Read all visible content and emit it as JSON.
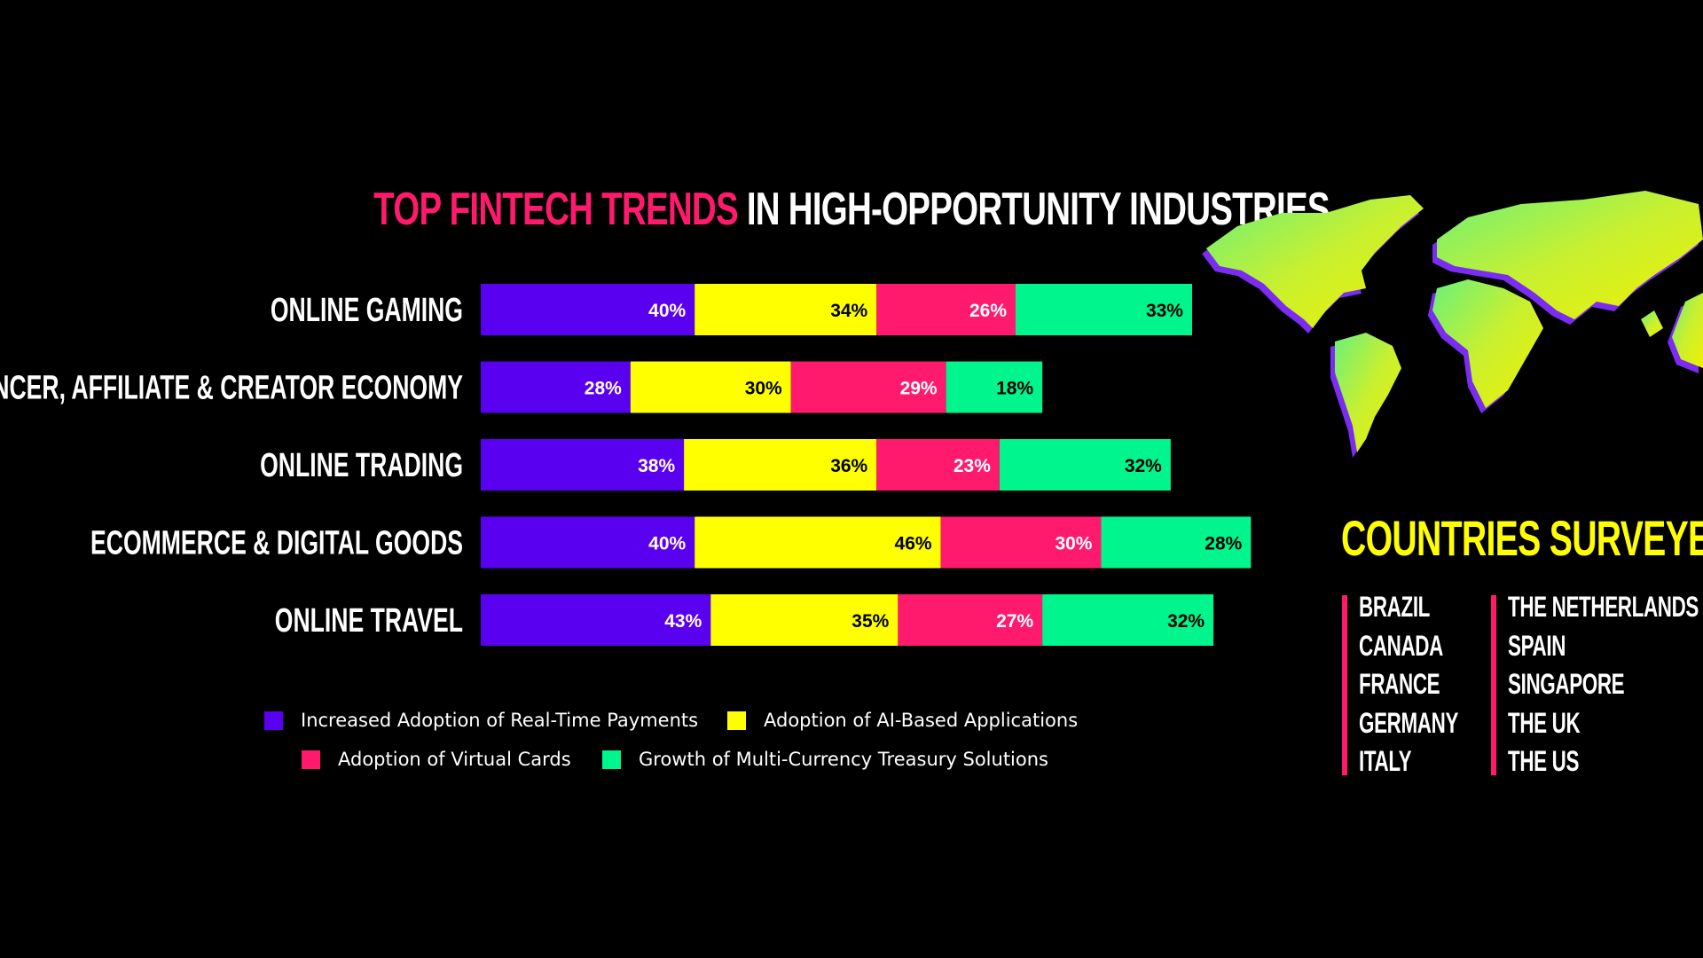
{
  "title": {
    "highlight": "TOP FINTECH TRENDS",
    "rest": " IN HIGH-OPPORTUNITY INDUSTRIES"
  },
  "colors": {
    "real_time_payments": "#5a00f0",
    "ai_applications": "#ffff00",
    "virtual_cards": "#ff1a6e",
    "multi_currency": "#00f58c",
    "accent": "#ff1a6e",
    "countries_title": "#ffff00"
  },
  "chart_data": {
    "type": "bar",
    "orientation": "horizontal",
    "stacked": true,
    "categories": [
      "ONLINE GAMING",
      "INFLUENCER, AFFILIATE & CREATOR ECONOMY",
      "ONLINE TRADING",
      "ECOMMERCE & DIGITAL GOODS",
      "ONLINE TRAVEL"
    ],
    "series": [
      {
        "name": "Increased Adoption of Real-Time Payments",
        "values": [
          40,
          28,
          38,
          40,
          43
        ],
        "color": "#5a00f0",
        "label_color": "#ffffff"
      },
      {
        "name": "Adoption of AI-Based Applications",
        "values": [
          34,
          30,
          36,
          46,
          35
        ],
        "color": "#ffff00",
        "label_color": "#000000"
      },
      {
        "name": "Adoption of Virtual Cards",
        "values": [
          26,
          29,
          23,
          30,
          27
        ],
        "color": "#ff1a6e",
        "label_color": "#ffffff"
      },
      {
        "name": "Growth of Multi-Currency Treasury Solutions",
        "values": [
          33,
          18,
          32,
          28,
          32
        ],
        "color": "#00f58c",
        "label_color": "#000000"
      }
    ],
    "value_suffix": "%",
    "grid": false,
    "legend_position": "bottom"
  },
  "countries": {
    "title": "COUNTRIES SURVEYED:",
    "column_1": [
      "BRAZIL",
      "CANADA",
      "FRANCE",
      "GERMANY",
      "ITALY"
    ],
    "column_2": [
      "THE NETHERLANDS",
      "SPAIN",
      "SINGAPORE",
      "THE UK",
      "THE US"
    ]
  }
}
